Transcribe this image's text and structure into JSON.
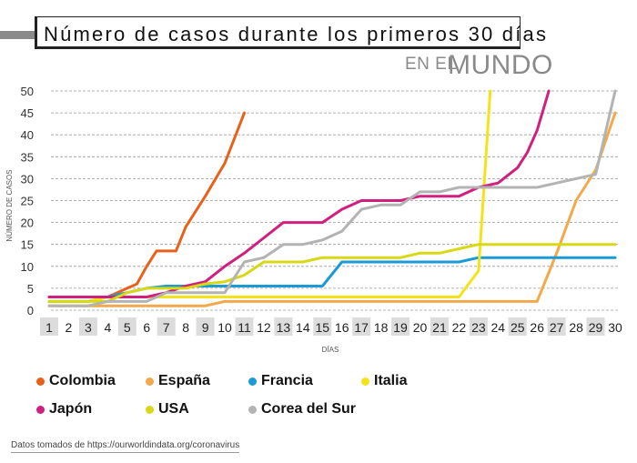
{
  "header": {
    "title": "Número de casos durante los primeros 30 días",
    "subtitle_prefix": "EN EL",
    "subtitle_main": "MUNDO"
  },
  "source": "Datos tomados de https://ourworldindata.org/coronavirus",
  "chart_data": {
    "type": "line",
    "xlabel": "DÍAS",
    "ylabel": "NÚMERO DE CASOS",
    "ylim": [
      0,
      50
    ],
    "yticks": [
      0,
      5,
      10,
      15,
      20,
      25,
      30,
      35,
      40,
      45,
      50
    ],
    "grid": "horizontal dashed",
    "legend_position": "bottom",
    "x": [
      1,
      2,
      3,
      4,
      5,
      6,
      7,
      8,
      9,
      10,
      11,
      12,
      13,
      14,
      15,
      16,
      17,
      18,
      19,
      20,
      21,
      22,
      23,
      24,
      25,
      26,
      27,
      28,
      29,
      30
    ],
    "x_labels": [
      "1",
      "2",
      "3",
      "4",
      "5",
      "6",
      "7",
      "8",
      "9",
      "10",
      "11",
      "12",
      "13",
      "14",
      "15",
      "16",
      "17",
      "18",
      "19",
      "20",
      "21",
      "22",
      "23",
      "24",
      "25",
      "26",
      "27",
      "28",
      "29",
      "30"
    ],
    "x_shaded": [
      1,
      3,
      5,
      7,
      9,
      11,
      13,
      15,
      17,
      19,
      21,
      23,
      25,
      27,
      29
    ],
    "series": [
      {
        "name": "Colombia",
        "color": "#e8611a",
        "points": [
          [
            1,
            3
          ],
          [
            2,
            3
          ],
          [
            3,
            3
          ],
          [
            4,
            3
          ],
          [
            5,
            5
          ],
          [
            5.5,
            6
          ],
          [
            6,
            10
          ],
          [
            6.5,
            13.5
          ],
          [
            7,
            13.5
          ],
          [
            7.5,
            13.5
          ],
          [
            8,
            19
          ],
          [
            9,
            26
          ],
          [
            10,
            33.5
          ],
          [
            11,
            45
          ]
        ]
      },
      {
        "name": "España",
        "color": "#f2a94a",
        "points": [
          [
            1,
            1
          ],
          [
            2,
            1
          ],
          [
            3,
            1
          ],
          [
            4,
            1
          ],
          [
            5,
            1
          ],
          [
            6,
            1
          ],
          [
            7,
            1
          ],
          [
            8,
            1
          ],
          [
            9,
            1
          ],
          [
            10,
            2
          ],
          [
            11,
            2
          ],
          [
            12,
            2
          ],
          [
            13,
            2
          ],
          [
            14,
            2
          ],
          [
            15,
            2
          ],
          [
            16,
            2
          ],
          [
            17,
            2
          ],
          [
            18,
            2
          ],
          [
            19,
            2
          ],
          [
            20,
            2
          ],
          [
            21,
            2
          ],
          [
            22,
            2
          ],
          [
            23,
            2
          ],
          [
            24,
            2
          ],
          [
            25,
            2
          ],
          [
            26,
            2
          ],
          [
            27,
            13
          ],
          [
            28,
            25
          ],
          [
            29,
            32
          ],
          [
            30,
            45
          ]
        ]
      },
      {
        "name": "Francia",
        "color": "#1a9ad6",
        "points": [
          [
            1,
            2
          ],
          [
            2,
            2
          ],
          [
            3,
            2
          ],
          [
            4,
            3
          ],
          [
            5,
            4
          ],
          [
            6,
            5
          ],
          [
            7,
            5.5
          ],
          [
            8,
            5.5
          ],
          [
            9,
            5.5
          ],
          [
            10,
            5.5
          ],
          [
            11,
            5.5
          ],
          [
            12,
            5.5
          ],
          [
            13,
            5.5
          ],
          [
            14,
            5.5
          ],
          [
            15,
            5.5
          ],
          [
            16,
            11
          ],
          [
            17,
            11
          ],
          [
            18,
            11
          ],
          [
            19,
            11
          ],
          [
            20,
            11
          ],
          [
            21,
            11
          ],
          [
            22,
            11
          ],
          [
            23,
            12
          ],
          [
            24,
            12
          ],
          [
            25,
            12
          ],
          [
            26,
            12
          ],
          [
            27,
            12
          ],
          [
            28,
            12
          ],
          [
            29,
            12
          ],
          [
            30,
            12
          ]
        ]
      },
      {
        "name": "Italia",
        "color": "#f5e31a",
        "points": [
          [
            1,
            2
          ],
          [
            2,
            2
          ],
          [
            3,
            2
          ],
          [
            4,
            3
          ],
          [
            5,
            3
          ],
          [
            6,
            3
          ],
          [
            7,
            3
          ],
          [
            8,
            3
          ],
          [
            9,
            3
          ],
          [
            10,
            3
          ],
          [
            11,
            3
          ],
          [
            12,
            3
          ],
          [
            13,
            3
          ],
          [
            14,
            3
          ],
          [
            15,
            3
          ],
          [
            16,
            3
          ],
          [
            17,
            3
          ],
          [
            18,
            3
          ],
          [
            19,
            3
          ],
          [
            20,
            3
          ],
          [
            21,
            3
          ],
          [
            22,
            3
          ],
          [
            23,
            9
          ],
          [
            23.6,
            50
          ]
        ]
      },
      {
        "name": "Japón",
        "color": "#d11f7e",
        "points": [
          [
            1,
            3
          ],
          [
            2,
            3
          ],
          [
            3,
            3
          ],
          [
            4,
            3
          ],
          [
            5,
            3
          ],
          [
            6,
            3
          ],
          [
            7,
            4
          ],
          [
            8,
            5.5
          ],
          [
            9,
            6.5
          ],
          [
            10,
            10
          ],
          [
            11,
            13
          ],
          [
            12,
            16.5
          ],
          [
            13,
            20
          ],
          [
            14,
            20
          ],
          [
            15,
            20
          ],
          [
            16,
            23
          ],
          [
            17,
            25
          ],
          [
            18,
            25
          ],
          [
            19,
            25
          ],
          [
            20,
            26
          ],
          [
            21,
            26
          ],
          [
            22,
            26
          ],
          [
            23,
            28
          ],
          [
            24,
            29
          ],
          [
            25,
            32.5
          ],
          [
            25.5,
            36
          ],
          [
            26,
            41
          ],
          [
            26.6,
            50
          ]
        ]
      },
      {
        "name": "USA",
        "color": "#d8d814",
        "points": [
          [
            1,
            2
          ],
          [
            2,
            2
          ],
          [
            3,
            2
          ],
          [
            4,
            2
          ],
          [
            5,
            4
          ],
          [
            6,
            5
          ],
          [
            7,
            5
          ],
          [
            8,
            5
          ],
          [
            9,
            6
          ],
          [
            10,
            6.5
          ],
          [
            11,
            8
          ],
          [
            12,
            11
          ],
          [
            13,
            11
          ],
          [
            14,
            11
          ],
          [
            15,
            12
          ],
          [
            16,
            12
          ],
          [
            17,
            12
          ],
          [
            18,
            12
          ],
          [
            19,
            12
          ],
          [
            20,
            13
          ],
          [
            21,
            13
          ],
          [
            22,
            14
          ],
          [
            23,
            15
          ],
          [
            24,
            15
          ],
          [
            25,
            15
          ],
          [
            26,
            15
          ],
          [
            27,
            15
          ],
          [
            28,
            15
          ],
          [
            29,
            15
          ],
          [
            30,
            15
          ]
        ]
      },
      {
        "name": "Corea del Sur",
        "color": "#b3b3b3",
        "points": [
          [
            1,
            1
          ],
          [
            2,
            1
          ],
          [
            3,
            1
          ],
          [
            4,
            2
          ],
          [
            5,
            2
          ],
          [
            6,
            2
          ],
          [
            7,
            4
          ],
          [
            8,
            4
          ],
          [
            9,
            4
          ],
          [
            10,
            4
          ],
          [
            11,
            11
          ],
          [
            12,
            12
          ],
          [
            13,
            15
          ],
          [
            14,
            15
          ],
          [
            15,
            16
          ],
          [
            16,
            18
          ],
          [
            17,
            23
          ],
          [
            18,
            24
          ],
          [
            19,
            24
          ],
          [
            20,
            27
          ],
          [
            21,
            27
          ],
          [
            22,
            28
          ],
          [
            23,
            28
          ],
          [
            24,
            28
          ],
          [
            25,
            28
          ],
          [
            26,
            28
          ],
          [
            27,
            29
          ],
          [
            28,
            30
          ],
          [
            29,
            31
          ],
          [
            30,
            50
          ]
        ]
      }
    ]
  }
}
